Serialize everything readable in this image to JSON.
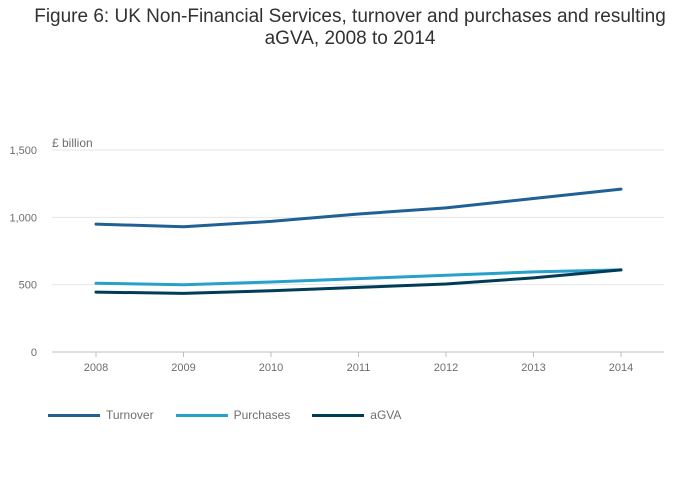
{
  "title": "Figure 6: UK Non-Financial Services, turnover and purchases and resulting aGVA, 2008 to 2014",
  "chart_data": {
    "type": "line",
    "title": "Figure 6: UK Non-Financial Services, turnover and purchases and resulting aGVA, 2008 to 2014",
    "xlabel": "",
    "ylabel": "£ billion",
    "categories": [
      "2008",
      "2009",
      "2010",
      "2011",
      "2012",
      "2013",
      "2014"
    ],
    "yticks": [
      0,
      500,
      1000,
      1500
    ],
    "ytick_labels": [
      "0",
      "500",
      "1,000",
      "1,500"
    ],
    "ylim": [
      0,
      1500
    ],
    "grid": true,
    "legend_position": "bottom-left",
    "series": [
      {
        "name": "Turnover",
        "color": "#206095",
        "values": [
          950,
          930,
          970,
          1025,
          1070,
          1140,
          1210
        ]
      },
      {
        "name": "Purchases",
        "color": "#27a0cc",
        "values": [
          510,
          500,
          520,
          545,
          570,
          595,
          610
        ]
      },
      {
        "name": "aGVA",
        "color": "#003c57",
        "values": [
          445,
          435,
          455,
          480,
          505,
          550,
          610
        ]
      }
    ]
  }
}
